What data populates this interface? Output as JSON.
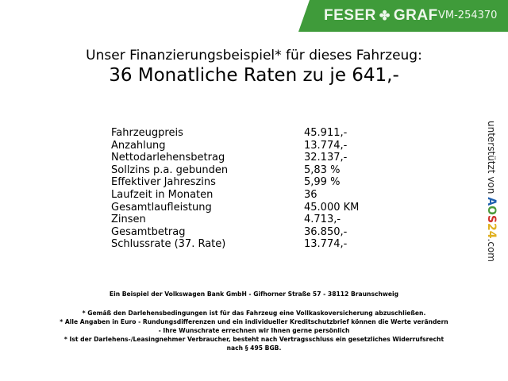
{
  "header": {
    "brand_left": "FESER",
    "brand_right": "GRAF",
    "vehicle_id": "VM-254370",
    "brand_color": "#3f9b3a"
  },
  "title": "Unser Finanzierungsbeispiel* für dieses Fahrzeug:",
  "subtitle": "36 Monatliche Raten zu je 641,-",
  "rows": [
    {
      "label": "Fahrzeugpreis",
      "value": "45.911,-"
    },
    {
      "label": "Anzahlung",
      "value": "13.774,-"
    },
    {
      "label": "Nettodarlehensbetrag",
      "value": "32.137,-"
    },
    {
      "label": "Sollzins p.a. gebunden",
      "value": "5,83 %"
    },
    {
      "label": "Effektiver Jahreszins",
      "value": "5,99 %"
    },
    {
      "label": "Laufzeit in Monaten",
      "value": "36"
    },
    {
      "label": "Gesamtlaufleistung",
      "value": "45.000 KM"
    },
    {
      "label": "Zinsen",
      "value": "4.713,-"
    },
    {
      "label": "Gesamtbetrag",
      "value": "36.850,-"
    },
    {
      "label": "Schlussrate (37. Rate)",
      "value": "13.774,-"
    }
  ],
  "side": {
    "text": "unterstützt von",
    "logo": "AOS24",
    "suffix": ".com"
  },
  "bank": "Ein Beispiel der Volkswagen Bank GmbH - Gifhorner Straße 57 - 38112 Braunschweig",
  "notes": [
    "* Gemäß den Darlehensbedingungen ist für das Fahrzeug eine Vollkaskoversicherung abzuschließen.",
    "* Alle Angaben in Euro - Rundungsdifferenzen und ein individueller Kreditschutzbrief können die Werte verändern",
    "- Ihre Wunschrate errechnen wir Ihnen gerne persönlich",
    "* Ist der Darlehens-/Leasingnehmer Verbraucher, besteht nach Vertragsschluss ein gesetzliches Widerrufsrecht",
    "nach § 495 BGB."
  ]
}
